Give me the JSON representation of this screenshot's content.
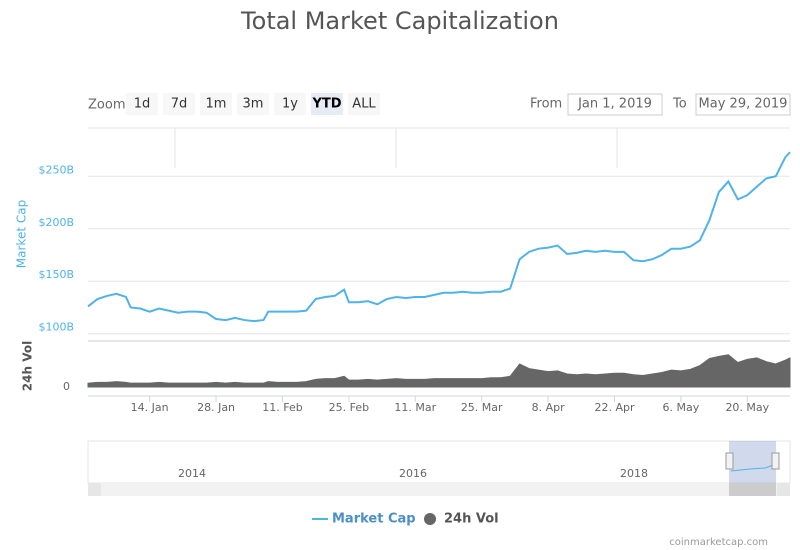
{
  "chart_data": {
    "type": "line",
    "title": "Total Market Capitalization",
    "zoom_label": "Zoom",
    "zoom_buttons": [
      "1d",
      "7d",
      "1m",
      "3m",
      "1y",
      "YTD",
      "ALL"
    ],
    "selected_zoom": "YTD",
    "range_from_label": "From",
    "range_from": "Jan 1, 2019",
    "range_to_label": "To",
    "range_to": "May 29, 2019",
    "y_axis_title": "Market Cap",
    "y2_axis_title": "24h Vol",
    "x": [
      "2019-01-01",
      "2019-01-03",
      "2019-01-05",
      "2019-01-07",
      "2019-01-09",
      "2019-01-10",
      "2019-01-12",
      "2019-01-14",
      "2019-01-16",
      "2019-01-18",
      "2019-01-20",
      "2019-01-22",
      "2019-01-24",
      "2019-01-26",
      "2019-01-28",
      "2019-01-30",
      "2019-02-01",
      "2019-02-03",
      "2019-02-05",
      "2019-02-07",
      "2019-02-08",
      "2019-02-10",
      "2019-02-12",
      "2019-02-14",
      "2019-02-16",
      "2019-02-18",
      "2019-02-20",
      "2019-02-22",
      "2019-02-24",
      "2019-02-25",
      "2019-02-27",
      "2019-03-01",
      "2019-03-03",
      "2019-03-05",
      "2019-03-07",
      "2019-03-09",
      "2019-03-11",
      "2019-03-13",
      "2019-03-15",
      "2019-03-17",
      "2019-03-19",
      "2019-03-21",
      "2019-03-23",
      "2019-03-25",
      "2019-03-27",
      "2019-03-29",
      "2019-03-31",
      "2019-04-02",
      "2019-04-04",
      "2019-04-06",
      "2019-04-08",
      "2019-04-10",
      "2019-04-12",
      "2019-04-14",
      "2019-04-16",
      "2019-04-18",
      "2019-04-20",
      "2019-04-22",
      "2019-04-24",
      "2019-04-26",
      "2019-04-28",
      "2019-04-30",
      "2019-05-02",
      "2019-05-04",
      "2019-05-06",
      "2019-05-08",
      "2019-05-10",
      "2019-05-12",
      "2019-05-14",
      "2019-05-16",
      "2019-05-18",
      "2019-05-20",
      "2019-05-22",
      "2019-05-24",
      "2019-05-26",
      "2019-05-28",
      "2019-05-29"
    ],
    "series": [
      {
        "name": "Market Cap",
        "color": "#4fb3e8",
        "axis": "y",
        "values": [
          126,
          133,
          136,
          138,
          135,
          125,
          124,
          121,
          124,
          122,
          120,
          121,
          121,
          120,
          114,
          113,
          115,
          113,
          112,
          113,
          121,
          121,
          121,
          121,
          122,
          133,
          135,
          136,
          142,
          130,
          130,
          131,
          128,
          133,
          135,
          134,
          135,
          135,
          137,
          139,
          139,
          140,
          139,
          139,
          140,
          140,
          143,
          171,
          178,
          181,
          182,
          184,
          176,
          177,
          179,
          178,
          179,
          178,
          178,
          170,
          169,
          171,
          175,
          181,
          181,
          183,
          189,
          208,
          235,
          245,
          228,
          232,
          240,
          248,
          250,
          268,
          273
        ]
      },
      {
        "name": "24h Vol",
        "color": "#666666",
        "axis": "y2",
        "values": [
          5,
          6,
          6,
          7,
          6,
          5,
          5,
          5,
          6,
          5,
          5,
          5,
          5,
          5,
          6,
          5,
          6,
          5,
          5,
          5,
          7,
          6,
          6,
          6,
          7,
          10,
          11,
          11,
          14,
          9,
          9,
          10,
          9,
          10,
          11,
          10,
          10,
          10,
          11,
          11,
          11,
          11,
          11,
          11,
          12,
          12,
          14,
          30,
          24,
          22,
          20,
          21,
          17,
          16,
          17,
          16,
          17,
          18,
          18,
          16,
          15,
          17,
          19,
          22,
          21,
          23,
          28,
          37,
          40,
          42,
          32,
          36,
          38,
          33,
          30,
          35,
          38
        ]
      }
    ],
    "xlim": [
      "2019-01-01",
      "2019-05-29"
    ],
    "xticks": [
      {
        "value": "2019-01-14",
        "label": "14. Jan"
      },
      {
        "value": "2019-01-28",
        "label": "28. Jan"
      },
      {
        "value": "2019-02-11",
        "label": "11. Feb"
      },
      {
        "value": "2019-02-25",
        "label": "25. Feb"
      },
      {
        "value": "2019-03-11",
        "label": "11. Mar"
      },
      {
        "value": "2019-03-25",
        "label": "25. Mar"
      },
      {
        "value": "2019-04-08",
        "label": "8. Apr"
      },
      {
        "value": "2019-04-22",
        "label": "22. Apr"
      },
      {
        "value": "2019-05-06",
        "label": "6. May"
      },
      {
        "value": "2019-05-20",
        "label": "20. May"
      }
    ],
    "ylim": [
      94,
      296
    ],
    "yticks": [
      {
        "value": 100,
        "label": "$100B"
      },
      {
        "value": 150,
        "label": "$150B"
      },
      {
        "value": 200,
        "label": "$200B"
      },
      {
        "value": 250,
        "label": "$250B"
      }
    ],
    "y2lim": [
      0,
      60
    ],
    "y2ticks": [
      0
    ],
    "grid": true,
    "navigator_labels": [
      "2014",
      "2016",
      "2018"
    ],
    "credit": "coinmarketcap.com"
  }
}
